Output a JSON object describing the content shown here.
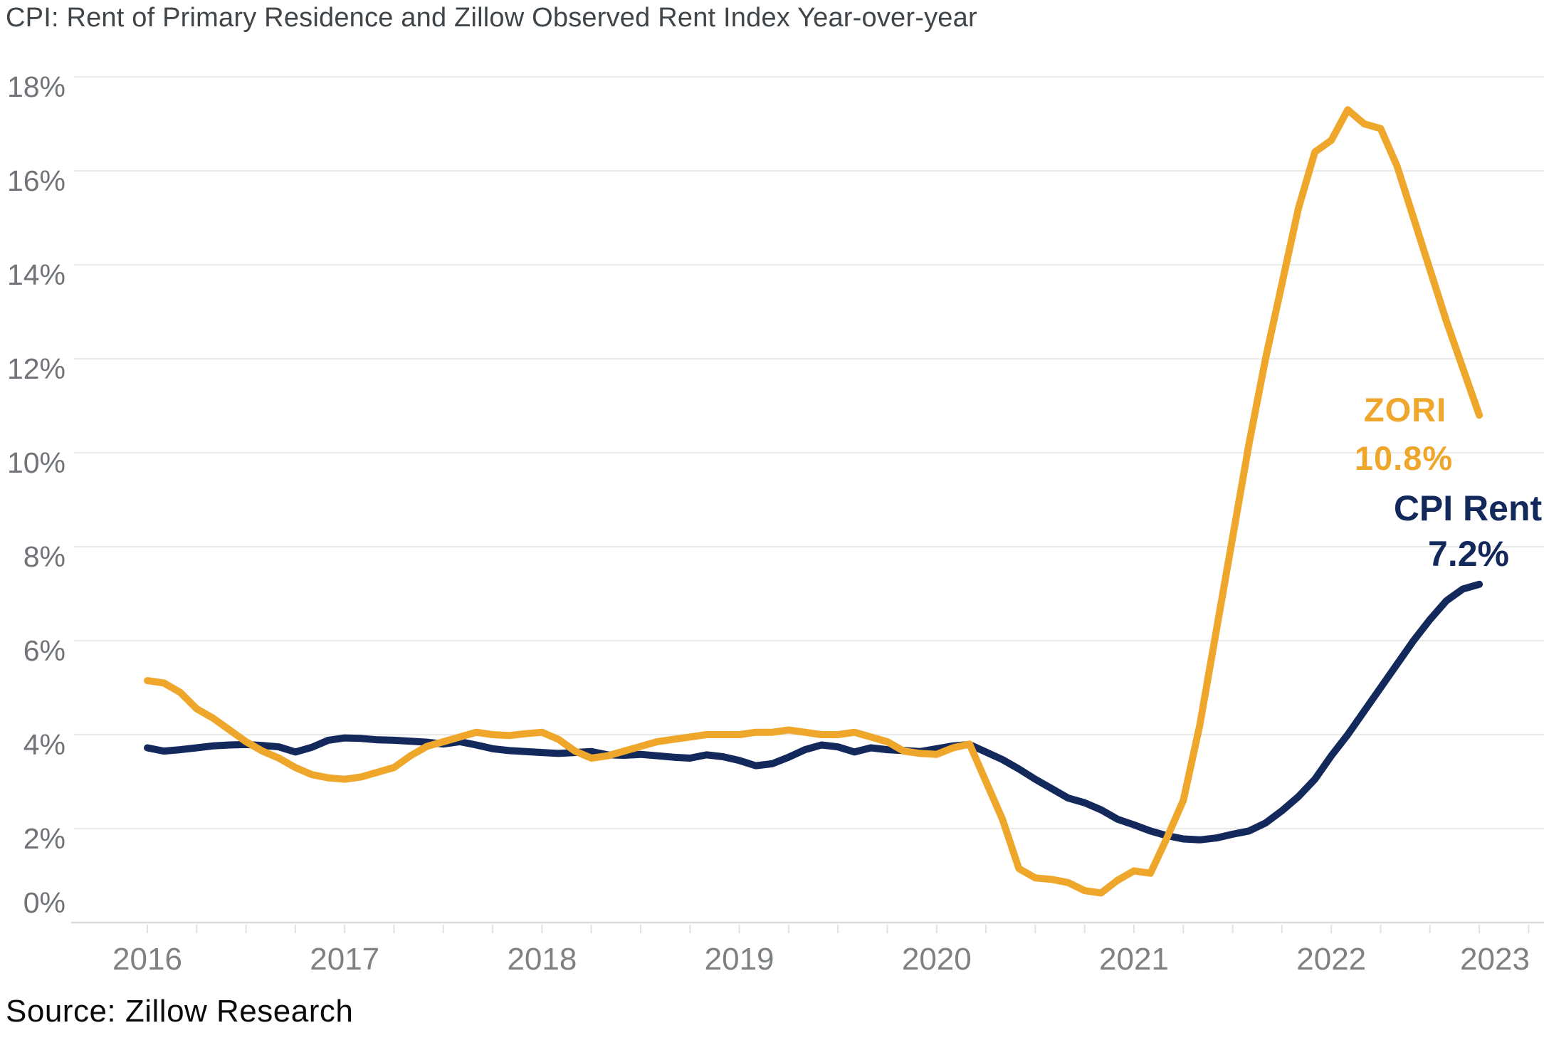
{
  "title": "CPI: Rent of Primary Residence and Zillow Observed Rent Index Year-over-year",
  "source": "Source: Zillow Research",
  "annotations": {
    "zori_name": "ZORI",
    "zori_value": "10.8%",
    "cpi_name": "CPI Rent",
    "cpi_value": "7.2%"
  },
  "colors": {
    "zori": "#EFA72B",
    "cpi_rent": "#13295C",
    "gridline": "#EBEBEB",
    "axis_line": "#DBDBDB",
    "minor_tick": "#E3E3E3",
    "title_text": "#404549",
    "y_tick_text": "#707478",
    "x_tick_text": "#7E8184",
    "source_text": "#0A0A0A",
    "background": "#FFFFFF"
  },
  "chart_data": {
    "type": "line",
    "title": "CPI: Rent of Primary Residence and Zillow Observed Rent Index Year-over-year",
    "xlabel": "",
    "ylabel": "",
    "x_start_month": "2016-01",
    "x_end_month": "2022-10",
    "months_per_point": 1,
    "x_tick_labels": [
      "2016",
      "2017",
      "2018",
      "2019",
      "2020",
      "2021",
      "2022",
      "2023"
    ],
    "y_tick_labels": [
      "0%",
      "2%",
      "4%",
      "6%",
      "8%",
      "10%",
      "12%",
      "14%",
      "16%",
      "18%"
    ],
    "y_tick_values": [
      0,
      2,
      4,
      6,
      8,
      10,
      12,
      14,
      16,
      18
    ],
    "ylim": [
      0,
      18
    ],
    "grid": "horizontal",
    "legend": "inline-end-labels",
    "minor_x_ticks": "quarterly",
    "series": [
      {
        "name": "ZORI",
        "color": "#EFA72B",
        "end_label": "10.8%",
        "values": [
          5.15,
          5.1,
          4.9,
          4.55,
          4.35,
          4.1,
          3.85,
          3.65,
          3.5,
          3.3,
          3.15,
          3.08,
          3.05,
          3.1,
          3.2,
          3.3,
          3.55,
          3.75,
          3.85,
          3.95,
          4.05,
          4.0,
          3.98,
          4.02,
          4.05,
          3.9,
          3.65,
          3.5,
          3.55,
          3.65,
          3.75,
          3.85,
          3.9,
          3.95,
          4.0,
          4.0,
          4.0,
          4.05,
          4.05,
          4.1,
          4.05,
          4.0,
          4.0,
          4.05,
          3.95,
          3.85,
          3.65,
          3.6,
          3.58,
          3.72,
          3.8,
          3.0,
          2.2,
          1.15,
          0.95,
          0.92,
          0.85,
          0.68,
          0.63,
          0.9,
          1.1,
          1.05,
          1.8,
          2.6,
          4.2,
          6.2,
          8.2,
          10.2,
          12.0,
          13.6,
          15.2,
          16.4,
          16.65,
          17.3,
          17.0,
          16.9,
          16.1,
          15.0,
          13.9,
          12.8,
          11.8,
          10.8
        ]
      },
      {
        "name": "CPI Rent",
        "color": "#13295C",
        "end_label": "7.2%",
        "values": [
          3.72,
          3.65,
          3.68,
          3.72,
          3.76,
          3.78,
          3.79,
          3.77,
          3.74,
          3.63,
          3.73,
          3.88,
          3.93,
          3.92,
          3.89,
          3.88,
          3.86,
          3.84,
          3.8,
          3.85,
          3.78,
          3.7,
          3.66,
          3.64,
          3.62,
          3.6,
          3.62,
          3.64,
          3.57,
          3.56,
          3.58,
          3.55,
          3.52,
          3.5,
          3.57,
          3.53,
          3.45,
          3.34,
          3.38,
          3.52,
          3.68,
          3.78,
          3.74,
          3.63,
          3.72,
          3.68,
          3.66,
          3.64,
          3.7,
          3.76,
          3.79,
          3.63,
          3.47,
          3.27,
          3.05,
          2.85,
          2.65,
          2.55,
          2.4,
          2.2,
          2.08,
          1.95,
          1.85,
          1.78,
          1.76,
          1.8,
          1.88,
          1.95,
          2.12,
          2.38,
          2.68,
          3.05,
          3.55,
          4.0,
          4.5,
          5.0,
          5.5,
          6.0,
          6.45,
          6.85,
          7.1,
          7.2
        ]
      }
    ]
  }
}
